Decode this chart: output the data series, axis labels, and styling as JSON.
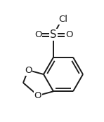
{
  "background_color": "#ffffff",
  "line_color": "#1a1a1a",
  "line_width": 1.4,
  "font_size": 9.5,
  "figsize": [
    1.48,
    1.74
  ],
  "dpi": 100,
  "xlim": [
    0,
    148
  ],
  "ylim": [
    0,
    174
  ]
}
